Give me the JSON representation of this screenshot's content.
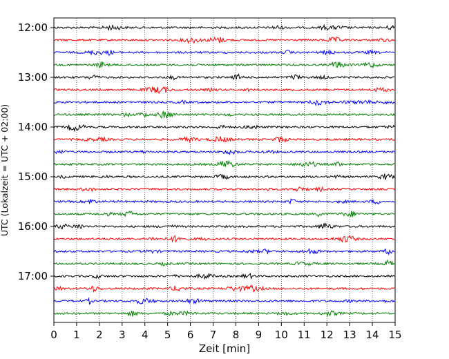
{
  "chart_data": {
    "type": "line",
    "title": "",
    "xlabel": "Zeit  [min]",
    "ylabel": "UTC (Lokalzeit = UTC + 02:00)",
    "xlim": [
      0,
      15
    ],
    "x_ticks": [
      "0",
      "1",
      "2",
      "3",
      "4",
      "5",
      "6",
      "7",
      "8",
      "9",
      "10",
      "11",
      "12",
      "13",
      "14",
      "15"
    ],
    "y_ticks": [
      "12:00",
      "13:00",
      "14:00",
      "15:00",
      "16:00",
      "17:00"
    ],
    "grid": "vertical-dotted",
    "trace_interval_minutes": 15,
    "trace_start": "12:00",
    "trace_count": 24,
    "trace_colors": [
      "#000000",
      "#ff0000",
      "#0000ff",
      "#007f00"
    ]
  }
}
